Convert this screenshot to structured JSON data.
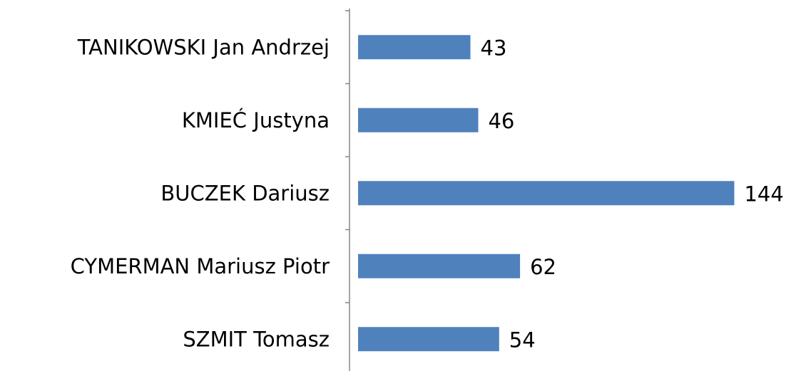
{
  "chart_data": {
    "type": "bar",
    "orientation": "horizontal",
    "categories": [
      "TANIKOWSKI Jan Andrzej",
      "KMIEĆ Justyna",
      "BUCZEK Dariusz",
      "CYMERMAN Mariusz Piotr",
      "SZMIT Tomasz"
    ],
    "values": [
      43,
      46,
      144,
      62,
      54
    ],
    "color": "#4f81bd"
  }
}
